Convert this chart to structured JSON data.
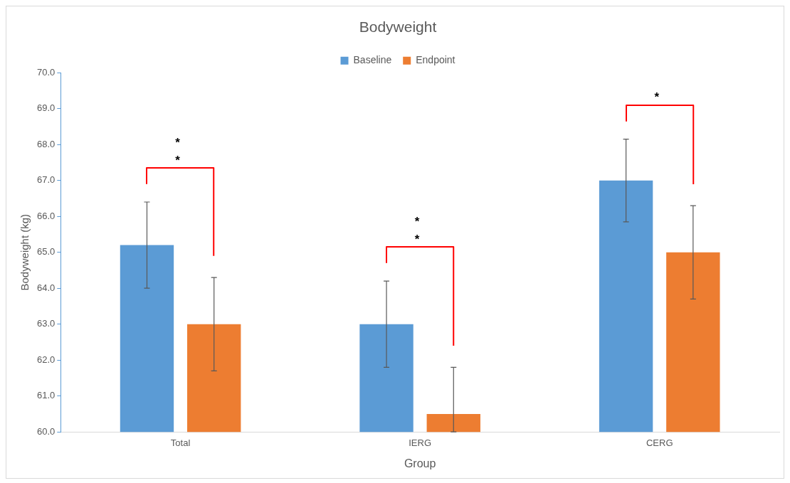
{
  "chart_data": {
    "type": "bar",
    "title": "Bodyweight",
    "xlabel": "Group",
    "ylabel": "Bodyweight (kg)",
    "categories": [
      "Total",
      "IERG",
      "CERG"
    ],
    "series": [
      {
        "name": "Baseline",
        "color": "#5b9bd5",
        "values": [
          65.2,
          63.0,
          67.0
        ],
        "errors": [
          1.2,
          1.2,
          1.15
        ]
      },
      {
        "name": "Endpoint",
        "color": "#ed7d31",
        "values": [
          63.0,
          60.5,
          65.0
        ],
        "errors": [
          1.3,
          [
            60,
            61.8
          ],
          1.3
        ]
      }
    ],
    "ylim": [
      60,
      70
    ],
    "yticks": [
      {
        "value": 60,
        "label": "60.0"
      },
      {
        "value": 61,
        "label": "61.0"
      },
      {
        "value": 62,
        "label": "62.0"
      },
      {
        "value": 63,
        "label": "63.0"
      },
      {
        "value": 64,
        "label": "64.0"
      },
      {
        "value": 65,
        "label": "65.0"
      },
      {
        "value": 66,
        "label": "66.0"
      },
      {
        "value": 67,
        "label": "67.0"
      },
      {
        "value": 68,
        "label": "68.0"
      },
      {
        "value": 69,
        "label": "69.0"
      },
      {
        "value": 70,
        "label": "70.0"
      }
    ],
    "grid": false,
    "legend": "top",
    "annotations": [
      "**",
      "**",
      "*"
    ]
  }
}
